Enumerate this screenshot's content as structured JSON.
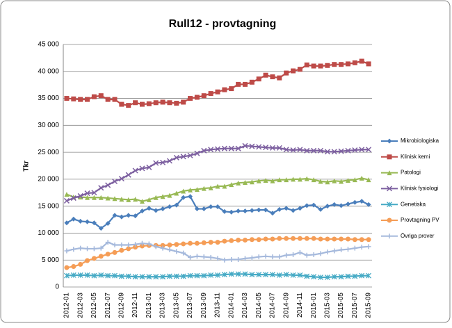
{
  "chart_data": {
    "type": "line",
    "title": "Rull12 - provtagning",
    "ylabel": "Tkr",
    "categories": [
      "2012-01",
      null,
      "2012-03",
      null,
      "2012-05",
      null,
      "2012-07",
      null,
      "2012-09",
      null,
      "2012-11",
      null,
      "2013-01",
      null,
      "2013-03",
      null,
      "2013-05",
      null,
      "2013-07",
      null,
      "2013-09",
      null,
      "2013-11",
      null,
      "2014-01",
      null,
      "2014-03",
      null,
      "2014-05",
      null,
      "2014-07",
      null,
      "2014-09",
      null,
      "2014-11",
      null,
      "2015-01",
      null,
      "2015-03",
      null,
      "2015-05",
      null,
      "2015-07",
      null,
      "2015-09"
    ],
    "ylim": [
      0,
      45000
    ],
    "yticks": [
      0,
      {
        "value": 5000,
        "label": "5 000"
      },
      {
        "value": 10000,
        "label": "10 000"
      },
      {
        "value": 15000,
        "label": "15 000"
      },
      {
        "value": 20000,
        "label": "20 000"
      },
      {
        "value": 25000,
        "label": "25 000"
      },
      {
        "value": 30000,
        "label": "30 000"
      },
      {
        "value": 35000,
        "label": "35 000"
      },
      {
        "value": 40000,
        "label": "40 000"
      },
      {
        "value": 45000,
        "label": "45 000"
      }
    ],
    "grid": true,
    "legend": "right",
    "series": [
      {
        "name": "Mikrobiologiska",
        "color": "#4a7ebb",
        "marker": "diamond",
        "values": [
          11900,
          12600,
          12200,
          12100,
          11900,
          10900,
          11800,
          13300,
          13000,
          13300,
          13200,
          14100,
          14600,
          14200,
          14500,
          14900,
          15200,
          16600,
          16800,
          14500,
          14500,
          14900,
          14900,
          14000,
          13900,
          14100,
          14100,
          14200,
          14300,
          14300,
          13700,
          14400,
          14600,
          14200,
          14600,
          15100,
          15200,
          14400,
          15000,
          15300,
          15100,
          15400,
          15700,
          15900,
          15300
        ]
      },
      {
        "name": "Klinisk kemi",
        "color": "#be4b48",
        "marker": "square",
        "values": [
          35000,
          34900,
          34800,
          34800,
          35300,
          35500,
          34800,
          34800,
          33900,
          33700,
          34200,
          33900,
          34000,
          34200,
          34300,
          34200,
          34100,
          34300,
          35000,
          35200,
          35500,
          35900,
          36200,
          36600,
          36800,
          37600,
          37600,
          38000,
          38600,
          39300,
          39000,
          38800,
          39700,
          40100,
          40400,
          41200,
          41000,
          41000,
          41100,
          41300,
          41300,
          41400,
          41600,
          41900,
          41400
        ]
      },
      {
        "name": "Patologi",
        "color": "#98b954",
        "marker": "triangle",
        "values": [
          17200,
          16700,
          16700,
          16600,
          16600,
          16600,
          16500,
          16400,
          16300,
          16200,
          16300,
          15900,
          16200,
          16600,
          16800,
          17000,
          17400,
          17800,
          18000,
          18100,
          18300,
          18400,
          18700,
          18700,
          19000,
          19300,
          19400,
          19500,
          19700,
          19800,
          19700,
          19900,
          19900,
          20000,
          20000,
          20100,
          19900,
          19600,
          19500,
          19700,
          19600,
          19800,
          19900,
          20200,
          19900
        ]
      },
      {
        "name": "Klinisk fysiologi",
        "color": "#7d60a0",
        "marker": "x",
        "values": [
          16000,
          16500,
          16900,
          17400,
          17500,
          18400,
          18900,
          19600,
          20100,
          20800,
          21600,
          22000,
          22200,
          23000,
          23100,
          23400,
          24000,
          24200,
          24400,
          24800,
          25300,
          25500,
          25600,
          25700,
          25700,
          25700,
          26200,
          26100,
          26000,
          25900,
          25800,
          25800,
          25500,
          25400,
          25500,
          25300,
          25300,
          25300,
          25100,
          25100,
          25200,
          25300,
          25400,
          25500,
          25500
        ]
      },
      {
        "name": "Genetiska",
        "color": "#46aac5",
        "marker": "star",
        "values": [
          2100,
          2200,
          2200,
          2200,
          2100,
          2200,
          2100,
          2100,
          2000,
          2000,
          1900,
          1900,
          1900,
          1900,
          1900,
          2000,
          2000,
          2000,
          2100,
          2100,
          2100,
          2200,
          2200,
          2300,
          2400,
          2400,
          2400,
          2300,
          2300,
          2300,
          2300,
          2200,
          2300,
          2200,
          2200,
          2000,
          1900,
          1800,
          1800,
          1900,
          1900,
          2000,
          2000,
          2100,
          2100
        ]
      },
      {
        "name": "Provtagning PV",
        "color": "#f59d56",
        "marker": "circle",
        "values": [
          3600,
          3800,
          4200,
          4900,
          5300,
          5700,
          6100,
          6400,
          6800,
          7100,
          7400,
          7600,
          7700,
          7700,
          7700,
          7800,
          7900,
          8000,
          8100,
          8100,
          8200,
          8300,
          8300,
          8500,
          8600,
          8700,
          8700,
          8800,
          8800,
          8900,
          8900,
          9000,
          9000,
          9000,
          9000,
          9000,
          9000,
          8900,
          8900,
          8900,
          8900,
          8900,
          8800,
          8800,
          8800
        ]
      },
      {
        "name": "Övriga prover",
        "color": "#a5b9dc",
        "marker": "plus",
        "values": [
          6700,
          7000,
          7200,
          7100,
          7100,
          7200,
          8300,
          7800,
          7800,
          7800,
          7900,
          8100,
          8000,
          7500,
          7200,
          6900,
          6600,
          6300,
          5500,
          5700,
          5600,
          5500,
          5300,
          5000,
          5100,
          5100,
          5300,
          5400,
          5600,
          5700,
          5600,
          5600,
          5900,
          6000,
          6400,
          5900,
          6000,
          6200,
          6500,
          6700,
          6900,
          7000,
          7200,
          7400,
          7500
        ]
      }
    ]
  }
}
